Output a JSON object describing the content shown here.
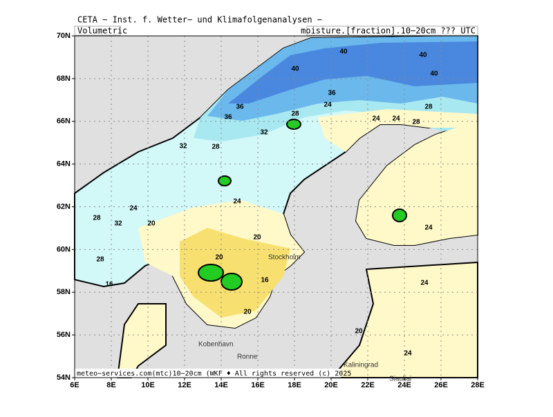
{
  "header": {
    "title": "CETA − Inst. f. Wetter− und Klimafolgenanalysen −",
    "left_label": "Volumetric",
    "right_label": "moisture.[fraction].10−20cm ??? UTC"
  },
  "map": {
    "lat_labels": [
      "70N",
      "68N",
      "66N",
      "64N",
      "62N",
      "60N",
      "58N",
      "56N",
      "54N"
    ],
    "lon_labels": [
      "6E",
      "8E",
      "10E",
      "12E",
      "14E",
      "16E",
      "18E",
      "20E",
      "22E",
      "24E",
      "26E",
      "28E"
    ],
    "place_names": [
      "Stockholm",
      "Kobenhavn",
      "Ronne",
      "Kaliningrad",
      "Siauliai"
    ],
    "contour_labels": [
      "40",
      "40",
      "40",
      "40",
      "36",
      "36",
      "36",
      "28",
      "24",
      "24",
      "24",
      "28",
      "28",
      "32",
      "28",
      "32",
      "24",
      "24",
      "28",
      "32",
      "20",
      "20",
      "20",
      "16",
      "16",
      "28",
      "24",
      "24",
      "20",
      "24",
      "20"
    ]
  },
  "footer": {
    "credit": "meteo−services.com(mtc)10−20cm (WKF ♦ All rights reserved (c) 2025"
  }
}
